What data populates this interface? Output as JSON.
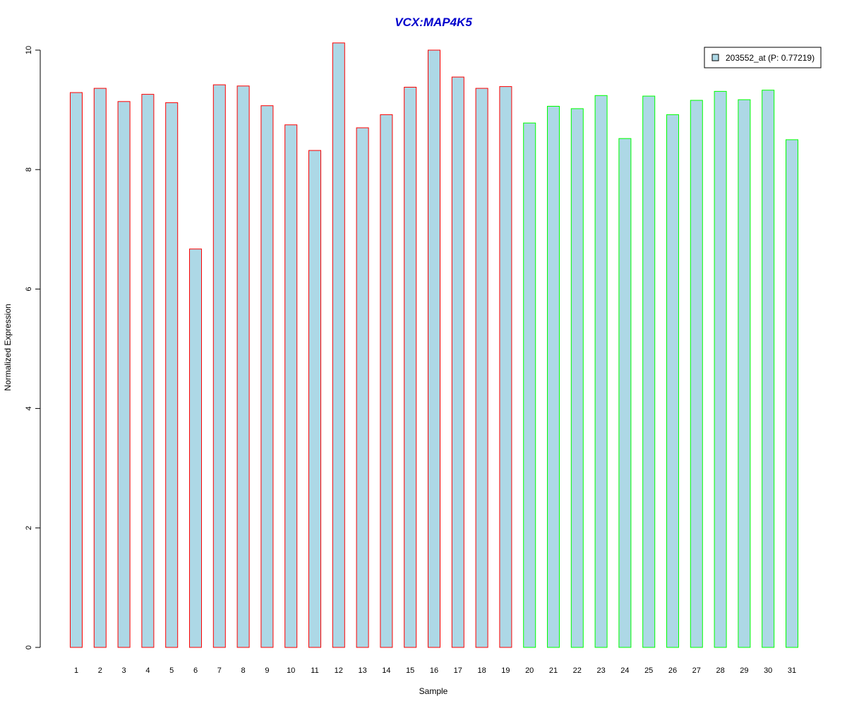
{
  "chart_data": {
    "type": "bar",
    "title": "VCX:MAP4K5",
    "xlabel": "Sample",
    "ylabel": "Normalized Expression",
    "ylim": [
      0,
      10
    ],
    "yticks": [
      "0",
      "2",
      "4",
      "6",
      "8",
      "10"
    ],
    "categories": [
      "1",
      "2",
      "3",
      "4",
      "5",
      "6",
      "7",
      "8",
      "9",
      "10",
      "11",
      "12",
      "13",
      "14",
      "15",
      "16",
      "17",
      "18",
      "19",
      "20",
      "21",
      "22",
      "23",
      "24",
      "25",
      "26",
      "27",
      "28",
      "29",
      "30",
      "31"
    ],
    "series": [
      {
        "name": "203552_at (P: 0.77219)",
        "values": [
          9.29,
          9.36,
          9.14,
          9.26,
          9.12,
          6.67,
          9.42,
          9.4,
          9.07,
          8.75,
          8.32,
          10.12,
          8.7,
          8.92,
          9.38,
          10.0,
          9.55,
          9.36,
          9.39,
          8.78,
          9.06,
          9.02,
          9.24,
          8.52,
          9.23,
          8.92,
          9.16,
          9.31,
          9.17,
          9.33,
          8.5
        ]
      }
    ],
    "group_border_colors": [
      "#ff0000",
      "#ff0000",
      "#ff0000",
      "#ff0000",
      "#ff0000",
      "#ff0000",
      "#ff0000",
      "#ff0000",
      "#ff0000",
      "#ff0000",
      "#ff0000",
      "#ff0000",
      "#ff0000",
      "#ff0000",
      "#ff0000",
      "#ff0000",
      "#ff0000",
      "#ff0000",
      "#ff0000",
      "#00ff00",
      "#00ff00",
      "#00ff00",
      "#00ff00",
      "#00ff00",
      "#00ff00",
      "#00ff00",
      "#00ff00",
      "#00ff00",
      "#00ff00",
      "#00ff00",
      "#00ff00"
    ],
    "bar_fill": "#add8e6",
    "title_color": "#0000cc",
    "legend_placement": "top-right",
    "grid": false
  }
}
